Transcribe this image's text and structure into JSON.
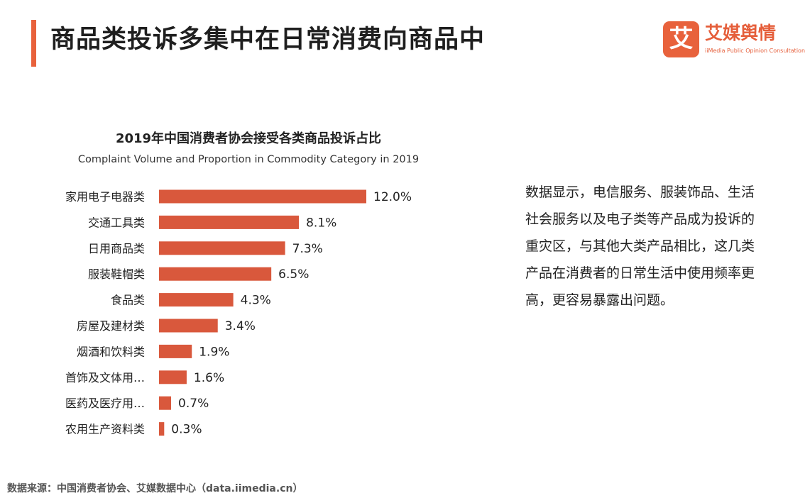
{
  "page_title": "商品类投诉多集中在日常消费向商品中",
  "logo": {
    "mark": "艾",
    "name": "艾媒舆情",
    "subtitle": "iiMedia Public Opinion Consultation"
  },
  "description": "数据显示，电信服务、服装饰品、生活社会服务以及电子类等产品成为投诉的重灾区，与其他大类产品相比，这几类产品在消费者的日常生活中使用频率更高，更容易暴露出问题。",
  "source": "数据来源：中国消费者协会、艾媒数据中心（data.iimedia.cn）",
  "colors": {
    "accent": "#E8623C",
    "bar": "#D9583C",
    "logo_text": "#E55E3A",
    "logo_sub": "#E55E3A"
  },
  "chart_data": {
    "type": "bar",
    "orientation": "horizontal",
    "title": "2019年中国消费者协会接受各类商品投诉占比",
    "subtitle": "Complaint Volume and Proportion in Commodity Category in 2019",
    "categories": [
      "家用电子电器类",
      "交通工具类",
      "日用商品类",
      "服装鞋帽类",
      "食品类",
      "房屋及建材类",
      "烟酒和饮料类",
      "首饰及文体用…",
      "医药及医疗用…",
      "农用生产资料类"
    ],
    "values": [
      12.0,
      8.1,
      7.3,
      6.5,
      4.3,
      3.4,
      1.9,
      1.6,
      0.7,
      0.3
    ],
    "value_labels": [
      "12.0%",
      "8.1%",
      "7.3%",
      "6.5%",
      "4.3%",
      "3.4%",
      "1.9%",
      "1.6%",
      "0.7%",
      "0.3%"
    ],
    "unit": "%",
    "xlim": [
      0,
      12.0
    ],
    "grid": false,
    "legend": "none"
  }
}
